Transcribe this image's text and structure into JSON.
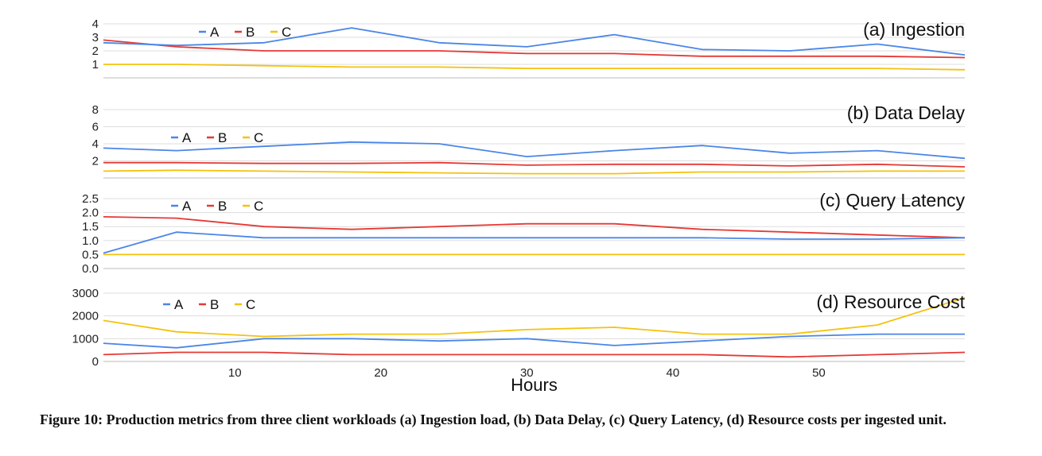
{
  "chart_data": [
    {
      "type": "line",
      "title": "(a) Ingestion",
      "x": [
        1,
        6,
        12,
        18,
        24,
        30,
        36,
        42,
        48,
        54,
        60
      ],
      "series": [
        {
          "name": "A",
          "values": [
            2.6,
            2.4,
            2.6,
            3.7,
            2.6,
            2.3,
            3.2,
            2.1,
            2.0,
            2.5,
            1.7
          ]
        },
        {
          "name": "B",
          "values": [
            2.8,
            2.3,
            2.0,
            2.0,
            2.0,
            1.8,
            1.8,
            1.6,
            1.6,
            1.6,
            1.5
          ]
        },
        {
          "name": "C",
          "values": [
            1.0,
            1.0,
            0.9,
            0.8,
            0.8,
            0.7,
            0.7,
            0.7,
            0.7,
            0.7,
            0.6
          ]
        }
      ],
      "xlim": [
        1,
        60
      ],
      "ylim": [
        0,
        4
      ],
      "yticks": [
        "1",
        "2",
        "3",
        "4"
      ]
    },
    {
      "type": "line",
      "title": "(b) Data Delay",
      "x": [
        1,
        6,
        12,
        18,
        24,
        30,
        36,
        42,
        48,
        54,
        60
      ],
      "series": [
        {
          "name": "A",
          "values": [
            3.5,
            3.2,
            3.7,
            4.2,
            4.0,
            2.5,
            3.2,
            3.8,
            2.9,
            3.2,
            2.3
          ]
        },
        {
          "name": "B",
          "values": [
            1.8,
            1.8,
            1.7,
            1.7,
            1.8,
            1.5,
            1.6,
            1.6,
            1.4,
            1.6,
            1.3
          ]
        },
        {
          "name": "C",
          "values": [
            0.8,
            0.9,
            0.8,
            0.7,
            0.6,
            0.5,
            0.5,
            0.7,
            0.7,
            0.8,
            0.8
          ]
        }
      ],
      "xlim": [
        1,
        60
      ],
      "ylim": [
        0,
        8
      ],
      "yticks": [
        "2",
        "4",
        "6",
        "8"
      ]
    },
    {
      "type": "line",
      "title": "(c) Query Latency",
      "x": [
        1,
        6,
        12,
        18,
        24,
        30,
        36,
        42,
        48,
        54,
        60
      ],
      "series": [
        {
          "name": "A",
          "values": [
            0.55,
            1.3,
            1.1,
            1.1,
            1.1,
            1.1,
            1.1,
            1.1,
            1.05,
            1.05,
            1.1
          ]
        },
        {
          "name": "B",
          "values": [
            1.85,
            1.8,
            1.5,
            1.4,
            1.5,
            1.6,
            1.6,
            1.4,
            1.3,
            1.2,
            1.1
          ]
        },
        {
          "name": "C",
          "values": [
            0.5,
            0.5,
            0.5,
            0.5,
            0.5,
            0.5,
            0.5,
            0.5,
            0.5,
            0.5,
            0.5
          ]
        }
      ],
      "xlim": [
        1,
        60
      ],
      "ylim": [
        0,
        2.5
      ],
      "yticks": [
        "0.0",
        "0.5",
        "1.0",
        "1.5",
        "2.0",
        "2.5"
      ]
    },
    {
      "type": "line",
      "title": "(d) Resource Cost",
      "x": [
        1,
        6,
        12,
        18,
        24,
        30,
        36,
        42,
        48,
        54,
        60
      ],
      "series": [
        {
          "name": "A",
          "values": [
            800,
            600,
            1000,
            1000,
            900,
            1000,
            700,
            900,
            1100,
            1200,
            1200
          ]
        },
        {
          "name": "B",
          "values": [
            300,
            400,
            400,
            300,
            300,
            300,
            300,
            300,
            200,
            300,
            400
          ]
        },
        {
          "name": "C",
          "values": [
            1800,
            1300,
            1100,
            1200,
            1200,
            1400,
            1500,
            1200,
            1200,
            1600,
            2800
          ]
        }
      ],
      "xlim": [
        1,
        60
      ],
      "ylim": [
        0,
        3000
      ],
      "yticks": [
        "0",
        "1000",
        "2000",
        "3000"
      ],
      "xticks": [
        "10",
        "20",
        "30",
        "40",
        "50"
      ],
      "xlabel": "Hours"
    }
  ],
  "legend_labels": [
    "A",
    "B",
    "C"
  ],
  "colors": {
    "A": "#4a86e8",
    "B": "#e53935",
    "C": "#f4c20d",
    "grid": "#dddddd"
  },
  "caption": "Figure 10: Production metrics from three client workloads (a) Ingestion load, (b) Data Delay, (c) Query Latency, (d) Resource costs per ingested unit."
}
